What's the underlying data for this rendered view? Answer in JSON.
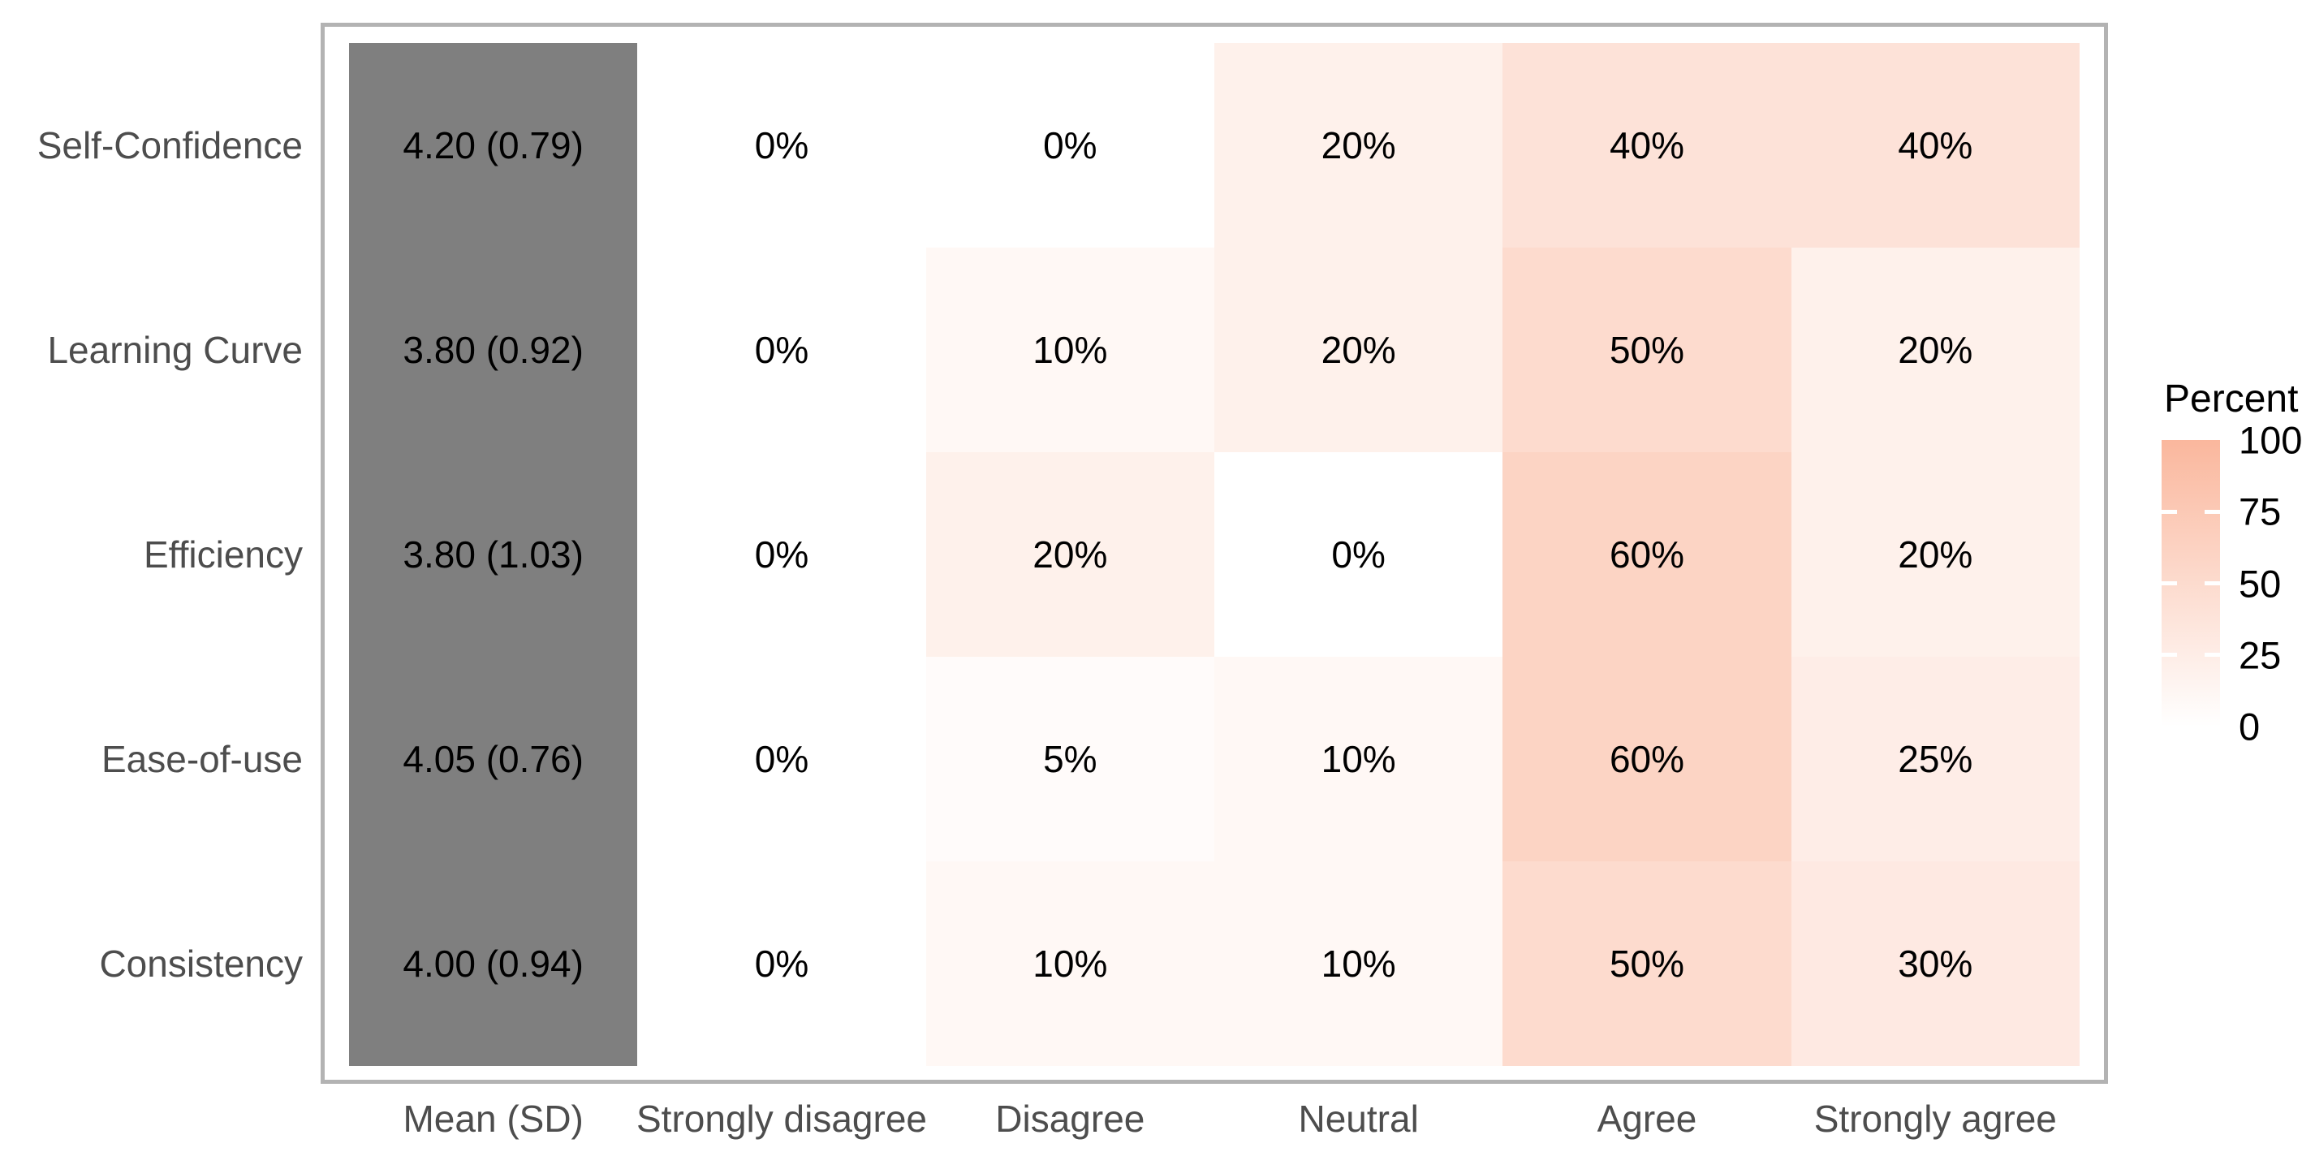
{
  "chart_data": {
    "type": "heatmap",
    "title": "",
    "categories_x": [
      "Mean (SD)",
      "Strongly disagree",
      "Disagree",
      "Neutral",
      "Agree",
      "Strongly agree"
    ],
    "categories_y": [
      "Self-Confidence",
      "Learning Curve",
      "Efficiency",
      "Ease-of-use",
      "Consistency"
    ],
    "series": [
      {
        "name": "Self-Confidence",
        "mean_sd": "4.20 (0.79)",
        "percents": [
          0,
          0,
          20,
          40,
          40
        ]
      },
      {
        "name": "Learning Curve",
        "mean_sd": "3.80 (0.92)",
        "percents": [
          0,
          10,
          20,
          50,
          20
        ]
      },
      {
        "name": "Efficiency",
        "mean_sd": "3.80 (1.03)",
        "percents": [
          0,
          20,
          0,
          60,
          20
        ]
      },
      {
        "name": "Ease-of-use",
        "mean_sd": "4.05 (0.76)",
        "percents": [
          0,
          5,
          10,
          60,
          25
        ]
      },
      {
        "name": "Consistency",
        "mean_sd": "4.00 (0.94)",
        "percents": [
          0,
          10,
          10,
          50,
          30
        ]
      }
    ],
    "percent_suffix": "%",
    "legend": {
      "title": "Percent",
      "ticks": [
        100,
        75,
        50,
        25,
        0
      ],
      "min": 0,
      "max": 100,
      "position": "right"
    },
    "axis_ranges": {
      "x_categories": 6,
      "y_categories": 5
    },
    "grid": "off",
    "colors": {
      "fill_low": "#ffffff",
      "fill_high": "#fab79d",
      "fill_high_rgb": [
        250,
        183,
        157
      ],
      "mean_column_fill": "#7f7f7f",
      "panel_border": "#b3b3b3",
      "axis_text": "#4d4d4d",
      "cell_text": "#000000",
      "background": "#ffffff"
    }
  }
}
